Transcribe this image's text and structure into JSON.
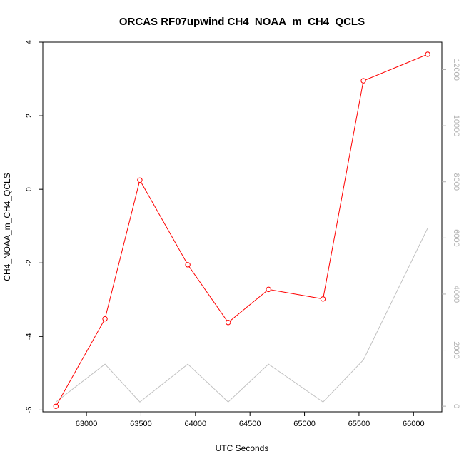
{
  "chart_data": {
    "type": "line",
    "title": "ORCAS RF07upwind CH4_NOAA_m_CH4_QCLS",
    "xlabel": "UTC Seconds",
    "ylabel": "CH4_NOAA_m_CH4_QCLS",
    "xlim": [
      62600,
      66260
    ],
    "ylim": [
      -6.05,
      4.0
    ],
    "ylim_right": [
      -200,
      12980
    ],
    "x_ticks": [
      63000,
      63500,
      64000,
      64500,
      65000,
      65500,
      66000
    ],
    "y_ticks": [
      -6,
      -4,
      -2,
      0,
      2,
      4
    ],
    "y_ticks_right": [
      0,
      2000,
      4000,
      6000,
      8000,
      10000,
      12000
    ],
    "grid": false,
    "series": [
      {
        "axis": "left",
        "color": "#ff0000",
        "marker": "open-circle",
        "x": [
          62720,
          63170,
          63490,
          63930,
          64300,
          64670,
          65170,
          65540,
          66130
        ],
        "y": [
          -5.9,
          -3.52,
          0.25,
          -2.05,
          -3.62,
          -2.72,
          -2.98,
          2.95,
          3.67
        ]
      },
      {
        "axis": "right",
        "color": "#c0c0c0",
        "marker": "none",
        "x": [
          62720,
          63170,
          63490,
          63930,
          64300,
          64670,
          65170,
          65540,
          66130
        ],
        "y": [
          150,
          1500,
          150,
          1500,
          150,
          1500,
          150,
          1650,
          6350
        ]
      }
    ]
  }
}
